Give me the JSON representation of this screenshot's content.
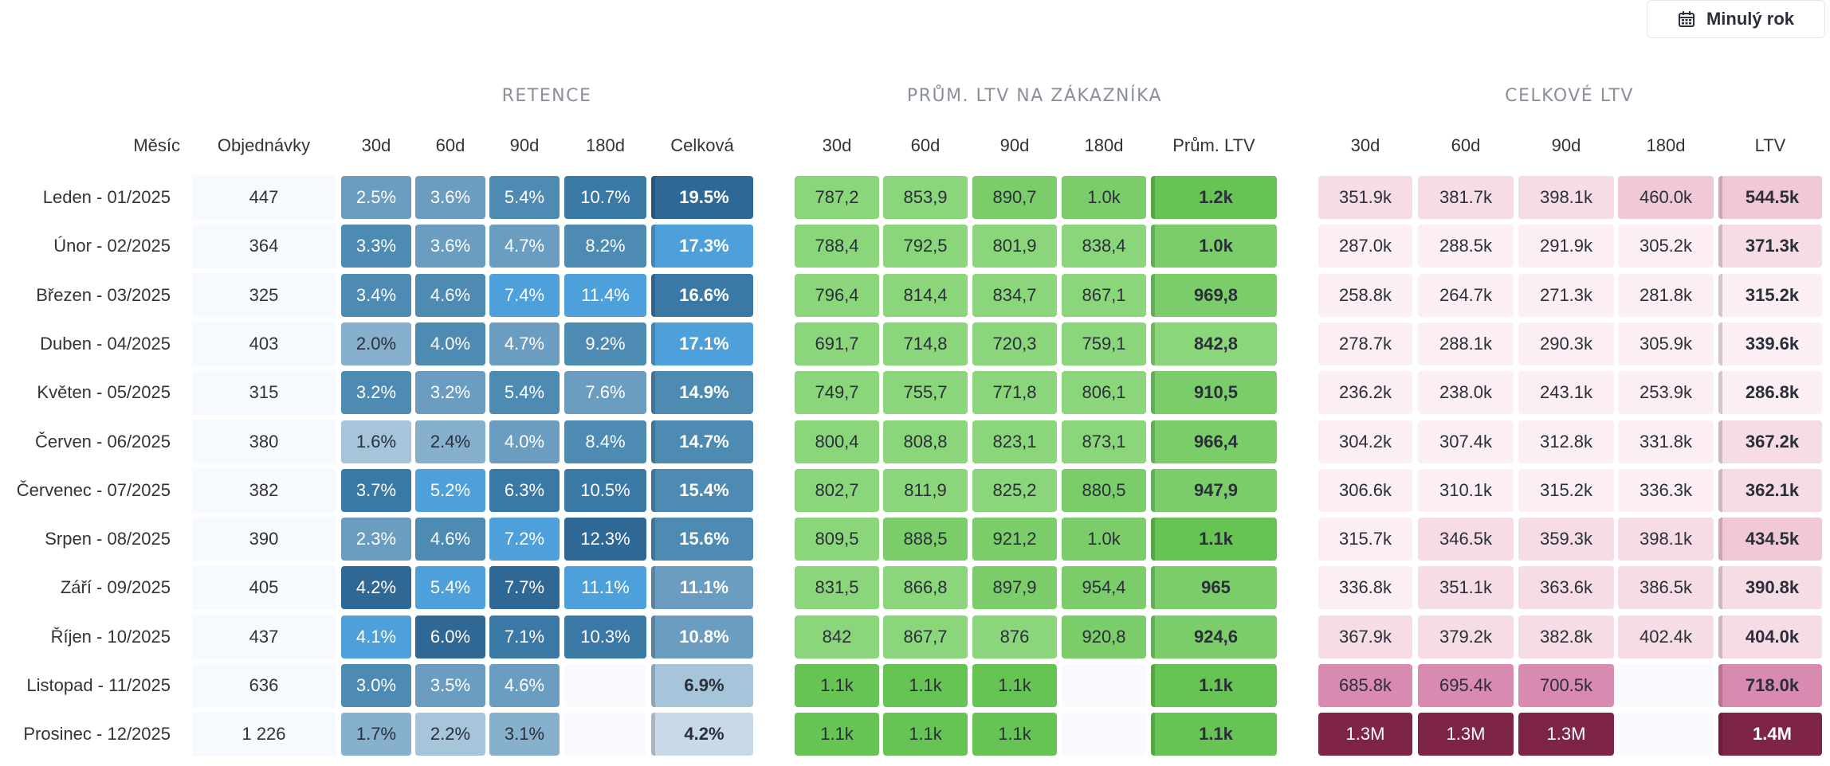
{
  "date_button": {
    "label": "Minulý rok",
    "icon": "calendar-icon"
  },
  "groups": {
    "retention": "RETENCE",
    "avg_ltv": "PRŮM. LTV NA ZÁKAZNÍKA",
    "total_ltv": "CELKOVÉ LTV"
  },
  "headers": {
    "month": "Měsíc",
    "orders": "Objednávky",
    "retention": [
      "30d",
      "60d",
      "90d",
      "180d",
      "Celková"
    ],
    "avg_ltv": [
      "30d",
      "60d",
      "90d",
      "180d",
      "Prům. LTV"
    ],
    "total_ltv": [
      "30d",
      "60d",
      "90d",
      "180d",
      "LTV"
    ]
  },
  "rows": [
    {
      "month": "Leden - 01/2025",
      "orders": "447",
      "retention": [
        "2.5%",
        "3.6%",
        "5.4%",
        "10.7%",
        "19.5%"
      ],
      "avg_ltv": [
        "787,2",
        "853,9",
        "890,7",
        "1.0k",
        "1.2k"
      ],
      "total_ltv": [
        "351.9k",
        "381.7k",
        "398.1k",
        "460.0k",
        "544.5k"
      ]
    },
    {
      "month": "Únor - 02/2025",
      "orders": "364",
      "retention": [
        "3.3%",
        "3.6%",
        "4.7%",
        "8.2%",
        "17.3%"
      ],
      "avg_ltv": [
        "788,4",
        "792,5",
        "801,9",
        "838,4",
        "1.0k"
      ],
      "total_ltv": [
        "287.0k",
        "288.5k",
        "291.9k",
        "305.2k",
        "371.3k"
      ]
    },
    {
      "month": "Březen - 03/2025",
      "orders": "325",
      "retention": [
        "3.4%",
        "4.6%",
        "7.4%",
        "11.4%",
        "16.6%"
      ],
      "avg_ltv": [
        "796,4",
        "814,4",
        "834,7",
        "867,1",
        "969,8"
      ],
      "total_ltv": [
        "258.8k",
        "264.7k",
        "271.3k",
        "281.8k",
        "315.2k"
      ]
    },
    {
      "month": "Duben - 04/2025",
      "orders": "403",
      "retention": [
        "2.0%",
        "4.0%",
        "4.7%",
        "9.2%",
        "17.1%"
      ],
      "avg_ltv": [
        "691,7",
        "714,8",
        "720,3",
        "759,1",
        "842,8"
      ],
      "total_ltv": [
        "278.7k",
        "288.1k",
        "290.3k",
        "305.9k",
        "339.6k"
      ]
    },
    {
      "month": "Květen - 05/2025",
      "orders": "315",
      "retention": [
        "3.2%",
        "3.2%",
        "5.4%",
        "7.6%",
        "14.9%"
      ],
      "avg_ltv": [
        "749,7",
        "755,7",
        "771,8",
        "806,1",
        "910,5"
      ],
      "total_ltv": [
        "236.2k",
        "238.0k",
        "243.1k",
        "253.9k",
        "286.8k"
      ]
    },
    {
      "month": "Červen - 06/2025",
      "orders": "380",
      "retention": [
        "1.6%",
        "2.4%",
        "4.0%",
        "8.4%",
        "14.7%"
      ],
      "avg_ltv": [
        "800,4",
        "808,8",
        "823,1",
        "873,1",
        "966,4"
      ],
      "total_ltv": [
        "304.2k",
        "307.4k",
        "312.8k",
        "331.8k",
        "367.2k"
      ]
    },
    {
      "month": "Červenec - 07/2025",
      "orders": "382",
      "retention": [
        "3.7%",
        "5.2%",
        "6.3%",
        "10.5%",
        "15.4%"
      ],
      "avg_ltv": [
        "802,7",
        "811,9",
        "825,2",
        "880,5",
        "947,9"
      ],
      "total_ltv": [
        "306.6k",
        "310.1k",
        "315.2k",
        "336.3k",
        "362.1k"
      ]
    },
    {
      "month": "Srpen - 08/2025",
      "orders": "390",
      "retention": [
        "2.3%",
        "4.6%",
        "7.2%",
        "12.3%",
        "15.6%"
      ],
      "avg_ltv": [
        "809,5",
        "888,5",
        "921,2",
        "1.0k",
        "1.1k"
      ],
      "total_ltv": [
        "315.7k",
        "346.5k",
        "359.3k",
        "398.1k",
        "434.5k"
      ]
    },
    {
      "month": "Září - 09/2025",
      "orders": "405",
      "retention": [
        "4.2%",
        "5.4%",
        "7.7%",
        "11.1%",
        "11.1%"
      ],
      "avg_ltv": [
        "831,5",
        "866,8",
        "897,9",
        "954,4",
        "965"
      ],
      "total_ltv": [
        "336.8k",
        "351.1k",
        "363.6k",
        "386.5k",
        "390.8k"
      ]
    },
    {
      "month": "Říjen - 10/2025",
      "orders": "437",
      "retention": [
        "4.1%",
        "6.0%",
        "7.1%",
        "10.3%",
        "10.8%"
      ],
      "avg_ltv": [
        "842",
        "867,7",
        "876",
        "920,8",
        "924,6"
      ],
      "total_ltv": [
        "367.9k",
        "379.2k",
        "382.8k",
        "402.4k",
        "404.0k"
      ]
    },
    {
      "month": "Listopad - 11/2025",
      "orders": "636",
      "retention": [
        "3.0%",
        "3.5%",
        "4.6%",
        "",
        "6.9%"
      ],
      "avg_ltv": [
        "1.1k",
        "1.1k",
        "1.1k",
        "",
        "1.1k"
      ],
      "total_ltv": [
        "685.8k",
        "695.4k",
        "700.5k",
        "",
        "718.0k"
      ]
    },
    {
      "month": "Prosinec - 12/2025",
      "orders": "1 226",
      "retention": [
        "1.7%",
        "2.2%",
        "3.1%",
        "",
        "4.2%"
      ],
      "avg_ltv": [
        "1.1k",
        "1.1k",
        "1.1k",
        "",
        "1.1k"
      ],
      "total_ltv": [
        "1.3M",
        "1.3M",
        "1.3M",
        "",
        "1.4M"
      ]
    }
  ],
  "colors": {
    "retention_scale": [
      "#e9eff5",
      "#c8d9e7",
      "#a6c4da",
      "#87b0cd",
      "#6a9dc0",
      "#4e8bb3",
      "#3a78a6",
      "#2f6795"
    ],
    "retention_highlight": "#4ea0da",
    "avg_ltv_scale": [
      "#8bd57a",
      "#7acd69",
      "#68c355"
    ],
    "total_ltv_scale": [
      "#fbeff3",
      "#f6dce5",
      "#f0c8d6",
      "#d98ab0",
      "#7e2446"
    ],
    "text_dark": "#2a2f3a",
    "group_title": "#8a8f98"
  }
}
